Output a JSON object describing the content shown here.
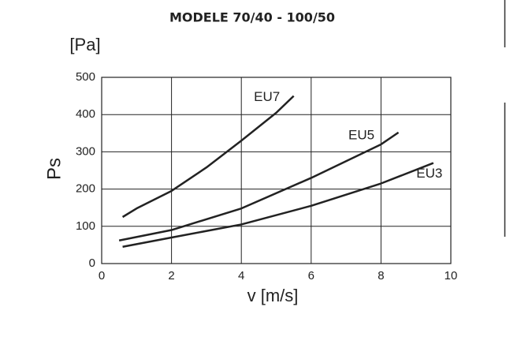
{
  "chart_data": {
    "type": "line",
    "title": "MODELE 70/40 - 100/50",
    "y_unit": "[Pa]",
    "y_label": "Ps",
    "x_label": "v [m/s]",
    "xlim": [
      0,
      10
    ],
    "xticks": [
      0,
      2,
      4,
      6,
      8,
      10
    ],
    "ylim": [
      0,
      500
    ],
    "yticks": [
      0,
      100,
      200,
      300,
      400,
      500
    ],
    "grid": true,
    "series": [
      {
        "name": "EU7",
        "color": "#222222",
        "x": [
          0.6,
          1,
          2,
          3,
          4,
          5,
          5.5
        ],
        "values": [
          125,
          148,
          195,
          258,
          330,
          405,
          450
        ]
      },
      {
        "name": "EU5",
        "color": "#222222",
        "x": [
          0.5,
          2,
          4,
          6,
          8,
          8.5
        ],
        "values": [
          62,
          90,
          148,
          230,
          320,
          352
        ]
      },
      {
        "name": "EU3",
        "color": "#222222",
        "x": [
          0.6,
          2,
          4,
          6,
          8,
          9.5
        ],
        "values": [
          45,
          70,
          105,
          155,
          215,
          270
        ]
      }
    ]
  }
}
